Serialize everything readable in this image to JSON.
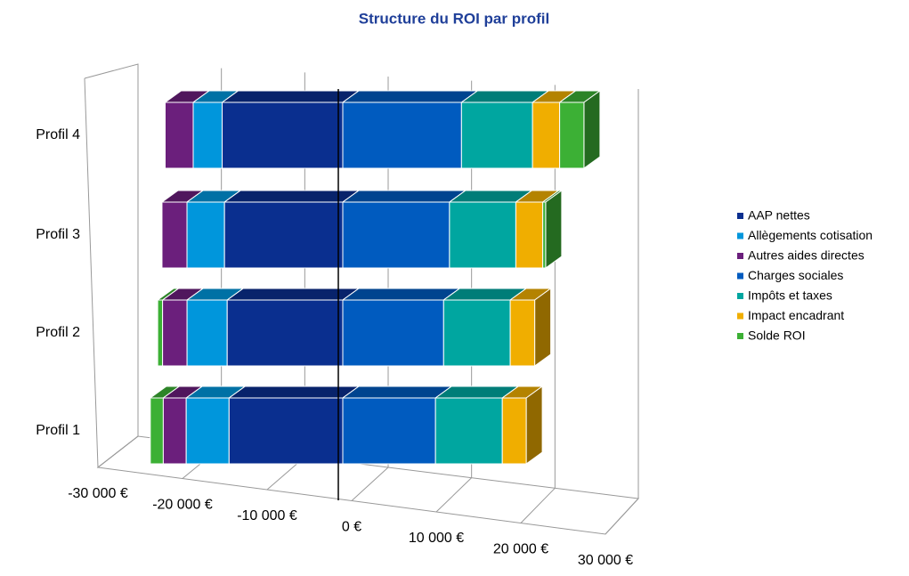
{
  "chart_data": {
    "type": "bar3d_stacked_horizontal",
    "title": "Structure du ROI par profil",
    "categories": [
      "Profil 1",
      "Profil 2",
      "Profil 3",
      "Profil 4"
    ],
    "series": [
      {
        "name": "AAP nettes",
        "color": "#0a2f8f",
        "values": [
          -11400,
          -11800,
          -12300,
          -12900
        ]
      },
      {
        "name": "Allègements cotisation",
        "color": "#0096dc",
        "values": [
          -4300,
          -4100,
          -3900,
          -3100
        ]
      },
      {
        "name": "Autres aides directes",
        "color": "#6b1f7c",
        "values": [
          -2300,
          -2500,
          -2600,
          -3000
        ]
      },
      {
        "name": "Charges sociales",
        "color": "#005bbf",
        "values": [
          9300,
          10300,
          11100,
          12700
        ]
      },
      {
        "name": "Impôts et taxes",
        "color": "#00a6a0",
        "values": [
          6700,
          6800,
          6900,
          7600
        ]
      },
      {
        "name": "Impact encadrant",
        "color": "#f0ae00",
        "values": [
          2400,
          2500,
          2800,
          2900
        ]
      },
      {
        "name": "Solde ROI",
        "color": "#3cb035",
        "values": [
          -1300,
          -500,
          300,
          2600
        ]
      }
    ],
    "xlim": [
      -30000,
      30000
    ],
    "xticks": [
      {
        "value": -30000,
        "label": "-30 000 €"
      },
      {
        "value": -20000,
        "label": "-20 000 €"
      },
      {
        "value": -10000,
        "label": "-10 000 €"
      },
      {
        "value": 0,
        "label": "0 €"
      },
      {
        "value": 10000,
        "label": "10 000 €"
      },
      {
        "value": 20000,
        "label": "20 000 €"
      },
      {
        "value": 30000,
        "label": "30 000 €"
      }
    ],
    "grid": true,
    "legend": "right"
  }
}
